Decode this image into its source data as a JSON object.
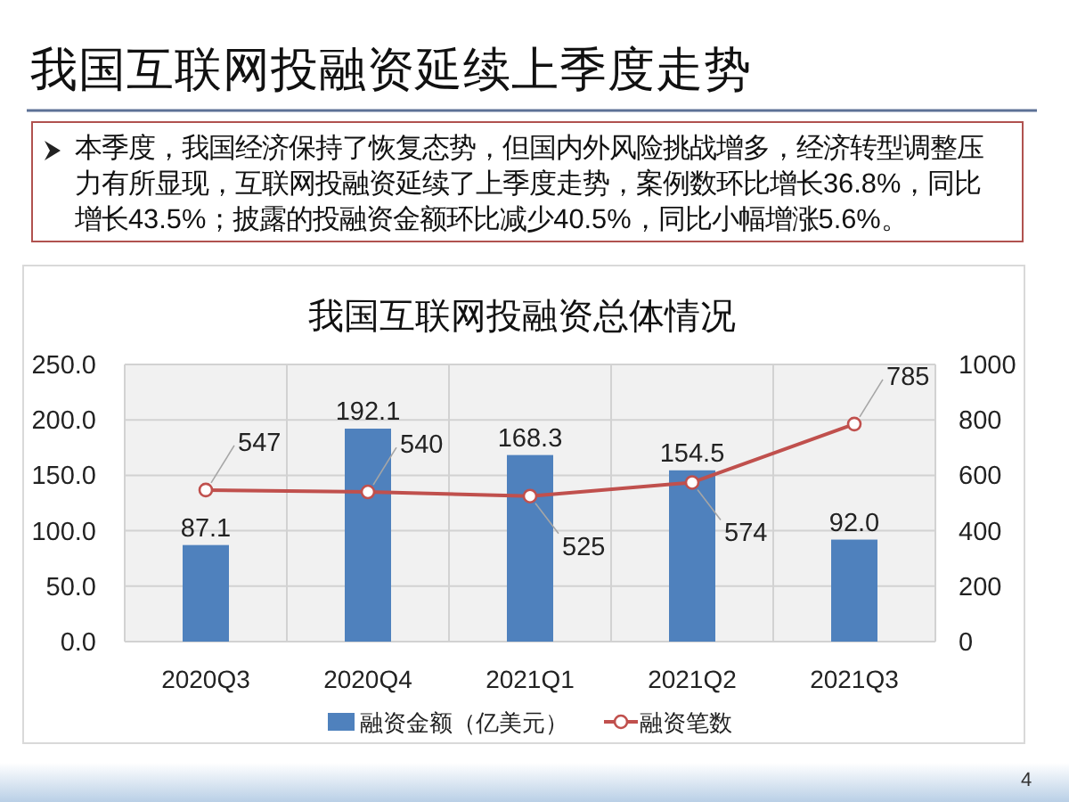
{
  "chart_data": {
    "type": "bar",
    "title": "我国互联网投融资延续上季度走势",
    "subtitle": "我国互联网投融资总体情况",
    "annotations": [
      "本季度，我国经济保持了恢复态势，但国内外风险挑战增多，经济转型调整压力有所显现，互联网投融资延续了上季度走势，案例数环比增长36.8%，同比增长43.5%；披露的投融资金额环比减少40.5%，同比小幅增涨5.6%。",
      "4"
    ],
    "categories": [
      "2020Q3",
      "2020Q4",
      "2021Q1",
      "2021Q2",
      "2021Q3"
    ],
    "series": [
      {
        "name": "融资金额（亿美元）",
        "color": "#4f81bd",
        "values": [
          87.1,
          192.1,
          168.3,
          154.5,
          92.0
        ],
        "value_labels": [
          "87.1",
          "192.1",
          "168.3",
          "154.5",
          "92.0"
        ]
      },
      {
        "name": "融资笔数",
        "type": "line",
        "axis": "y2",
        "color": "#c0504d",
        "marker": "circle",
        "values": [
          547,
          540,
          525,
          574,
          785
        ],
        "value_labels": [
          "547",
          "540",
          "525",
          "574",
          "785"
        ]
      }
    ],
    "ylim": [
      0,
      250
    ],
    "yticks": [
      {
        "value": 0,
        "label": "0.0"
      },
      {
        "value": 50,
        "label": "50.0"
      },
      {
        "value": 100,
        "label": "100.0"
      },
      {
        "value": 150,
        "label": "150.0"
      },
      {
        "value": 200,
        "label": "200.0"
      },
      {
        "value": 250,
        "label": "250.0"
      }
    ],
    "y2lim": [
      0,
      1000
    ],
    "y2ticks": [
      0,
      200,
      400,
      600,
      800,
      1000
    ],
    "grid": true,
    "legend": "bottom"
  }
}
